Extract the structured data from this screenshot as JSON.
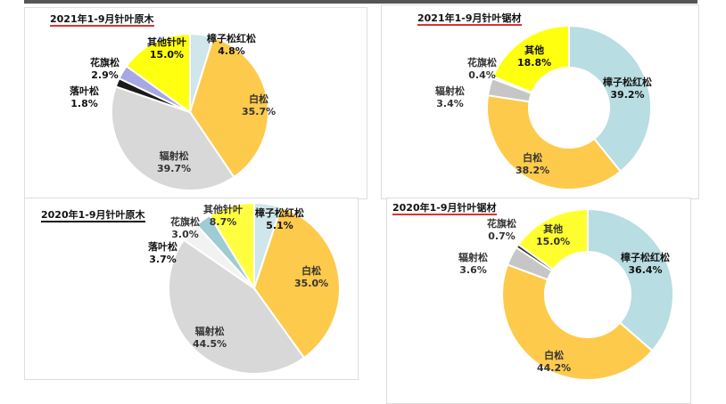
{
  "chart_data": [
    {
      "type": "pie",
      "title": "2021年1-9月针叶原木",
      "slices": [
        {
          "name": "樟子松红松",
          "value": 4.8,
          "label": "4.8%",
          "color": "#cfe6ea"
        },
        {
          "name": "白松",
          "value": 35.7,
          "label": "35.7%",
          "color": "#fdca4c"
        },
        {
          "name": "辐射松",
          "value": 39.7,
          "label": "39.7%",
          "color": "#d8d8d8"
        },
        {
          "name": "落叶松",
          "value": 1.8,
          "label": "1.8%",
          "color": "#1a1a1a"
        },
        {
          "name": "花旗松",
          "value": 2.9,
          "label": "2.9%",
          "color": "#a7a7e4"
        },
        {
          "name": "其他针叶",
          "value": 15.0,
          "label": "15.0%",
          "color": "#ffff10"
        }
      ]
    },
    {
      "type": "pie",
      "title": "2020年1-9月针叶原木",
      "slices": [
        {
          "name": "樟子松红松",
          "value": 5.1,
          "label": "5.1%",
          "color": "#cfe6ea"
        },
        {
          "name": "白松",
          "value": 35.0,
          "label": "35.0%",
          "color": "#fdca4c"
        },
        {
          "name": "辐射松",
          "value": 44.5,
          "label": "44.5%",
          "color": "#d8d8d8"
        },
        {
          "name": "落叶松",
          "value": 3.7,
          "label": "3.7%",
          "color": "#f2f2f2"
        },
        {
          "name": "花旗松",
          "value": 3.0,
          "label": "3.0%",
          "color": "#9fcbd3"
        },
        {
          "name": "其他针叶",
          "value": 8.7,
          "label": "8.7%",
          "color": "#ffff40"
        }
      ]
    },
    {
      "type": "donut",
      "title": "2021年1-9月针叶锯材",
      "slices": [
        {
          "name": "樟子松红松",
          "value": 39.2,
          "label": "39.2%",
          "color": "#b8dde2"
        },
        {
          "name": "白松",
          "value": 38.2,
          "label": "38.2%",
          "color": "#fdca4c"
        },
        {
          "name": "辐射松",
          "value": 3.4,
          "label": "3.4%",
          "color": "#c6c6c6"
        },
        {
          "name": "花旗松",
          "value": 0.4,
          "label": "0.4%",
          "color": "#555555"
        },
        {
          "name": "其他",
          "value": 18.8,
          "label": "18.8%",
          "color": "#ffff10"
        }
      ]
    },
    {
      "type": "donut",
      "title": "2020年1-9月针叶锯材",
      "slices": [
        {
          "name": "樟子松红松",
          "value": 36.4,
          "label": "36.4%",
          "color": "#b8dde2"
        },
        {
          "name": "白松",
          "value": 44.2,
          "label": "44.2%",
          "color": "#fdca4c"
        },
        {
          "name": "辐射松",
          "value": 3.6,
          "label": "3.6%",
          "color": "#c6c6c6"
        },
        {
          "name": "花旗松",
          "value": 0.7,
          "label": "0.7%",
          "color": "#333333"
        },
        {
          "name": "其他",
          "value": 15.0,
          "label": "15.0%",
          "color": "#ffff30"
        }
      ]
    }
  ]
}
